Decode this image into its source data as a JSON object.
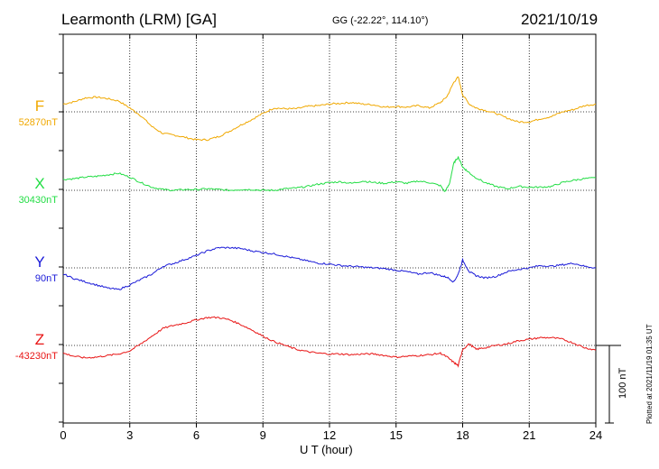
{
  "header": {
    "title": "Learmonth (LRM)  [GA]",
    "coords": "GG (-22.22°, 114.10°)",
    "date": "2021/10/19"
  },
  "footer": {
    "plotted": "Plotted at 2021/11/19 01:35 UT",
    "scale": "100 nT"
  },
  "chart_data": {
    "type": "line",
    "xlabel": "U T (hour)",
    "xlim": [
      0,
      24
    ],
    "xticks": [
      "0",
      "3",
      "6",
      "9",
      "12",
      "15",
      "18",
      "21",
      "24"
    ],
    "scale_nT": 100,
    "grid": true,
    "series": [
      {
        "name": "F",
        "baseline_label": "52870nT",
        "color": "#f0a800",
        "x": [
          0,
          0.5,
          1,
          1.5,
          2,
          2.5,
          3,
          3.5,
          4,
          4.5,
          5,
          5.5,
          6,
          6.5,
          7,
          7.5,
          8,
          8.5,
          9,
          9.5,
          10,
          10.5,
          11,
          11.5,
          12,
          12.5,
          13,
          13.5,
          14,
          14.5,
          15,
          15.5,
          16,
          16.5,
          17,
          17.3,
          17.6,
          17.8,
          18,
          18.3,
          18.6,
          19,
          19.5,
          20,
          20.5,
          21,
          21.5,
          22,
          22.5,
          23,
          23.5,
          24
        ],
        "values": [
          10,
          13,
          18,
          19,
          17,
          14,
          5,
          -5,
          -19,
          -28,
          -30,
          -33,
          -36,
          -36,
          -32,
          -25,
          -17,
          -10,
          -2,
          5,
          4,
          4,
          7,
          8,
          10,
          11,
          12,
          10,
          9,
          6,
          7,
          6,
          8,
          5,
          12,
          20,
          38,
          45,
          22,
          10,
          5,
          2,
          -2,
          -8,
          -13,
          -13,
          -9,
          -6,
          0,
          3,
          8,
          10
        ]
      },
      {
        "name": "X",
        "baseline_label": "30430nT",
        "color": "#22dd44",
        "x": [
          0,
          0.5,
          1,
          1.5,
          2,
          2.5,
          3,
          3.5,
          4,
          4.5,
          5,
          5.5,
          6,
          6.5,
          7,
          7.5,
          8,
          8.5,
          9,
          9.5,
          10,
          10.5,
          11,
          11.5,
          12,
          12.5,
          13,
          13.5,
          14,
          14.5,
          15,
          15.5,
          16,
          16.5,
          17,
          17.2,
          17.4,
          17.6,
          17.8,
          18,
          18.2,
          18.5,
          19,
          19.5,
          20,
          20.5,
          21,
          21.5,
          22,
          22.5,
          23,
          23.5,
          24
        ],
        "values": [
          14,
          15,
          17,
          18,
          20,
          22,
          17,
          10,
          4,
          1,
          0,
          1,
          1,
          2,
          1,
          0,
          1,
          1,
          0,
          0,
          2,
          3,
          5,
          8,
          10,
          11,
          9,
          12,
          10,
          9,
          11,
          9,
          12,
          10,
          6,
          -2,
          8,
          35,
          43,
          30,
          25,
          18,
          10,
          5,
          2,
          5,
          4,
          4,
          5,
          10,
          13,
          15,
          16
        ]
      },
      {
        "name": "Y",
        "baseline_label": "90nT",
        "color": "#1a1ad8",
        "x": [
          0,
          0.5,
          1,
          1.5,
          2,
          2.5,
          3,
          3.5,
          4,
          4.5,
          5,
          5.5,
          6,
          6.5,
          7,
          7.5,
          8,
          8.5,
          9,
          9.5,
          10,
          10.5,
          11,
          11.5,
          12,
          12.5,
          13,
          13.5,
          14,
          14.5,
          15,
          15.5,
          16,
          16.5,
          17,
          17.3,
          17.6,
          17.8,
          18,
          18.3,
          18.6,
          19,
          19.5,
          20,
          20.5,
          21,
          21.5,
          22,
          22.5,
          23,
          23.5,
          24
        ],
        "values": [
          -8,
          -14,
          -18,
          -22,
          -26,
          -28,
          -22,
          -15,
          -8,
          2,
          6,
          11,
          16,
          22,
          26,
          26,
          25,
          22,
          20,
          18,
          15,
          12,
          9,
          6,
          5,
          3,
          2,
          1,
          0,
          -1,
          -3,
          -5,
          -8,
          -6,
          -10,
          -12,
          -18,
          -8,
          10,
          -5,
          -10,
          -13,
          -11,
          -5,
          -2,
          0,
          3,
          2,
          4,
          6,
          2,
          0
        ]
      },
      {
        "name": "Z",
        "baseline_label": "-43230nT",
        "color": "#e81414",
        "x": [
          0,
          0.5,
          1,
          1.5,
          2,
          2.5,
          3,
          3.5,
          4,
          4.5,
          5,
          5.5,
          6,
          6.5,
          7,
          7.5,
          8,
          8.5,
          9,
          9.5,
          10,
          10.5,
          11,
          11.5,
          12,
          12.5,
          13,
          13.5,
          14,
          14.5,
          15,
          15.5,
          16,
          16.5,
          17,
          17.3,
          17.6,
          17.8,
          18,
          18.3,
          18.6,
          19,
          19.5,
          20,
          20.5,
          21,
          21.5,
          22,
          22.5,
          23,
          23.5,
          24
        ],
        "values": [
          -10,
          -14,
          -16,
          -15,
          -13,
          -11,
          -7,
          2,
          12,
          22,
          26,
          29,
          33,
          36,
          36,
          33,
          27,
          20,
          12,
          5,
          0,
          -5,
          -8,
          -10,
          -11,
          -11,
          -12,
          -11,
          -11,
          -13,
          -15,
          -14,
          -13,
          -12,
          -10,
          -15,
          -22,
          -26,
          -5,
          2,
          -5,
          -3,
          0,
          2,
          6,
          8,
          10,
          10,
          8,
          3,
          -3,
          -6
        ]
      }
    ]
  }
}
